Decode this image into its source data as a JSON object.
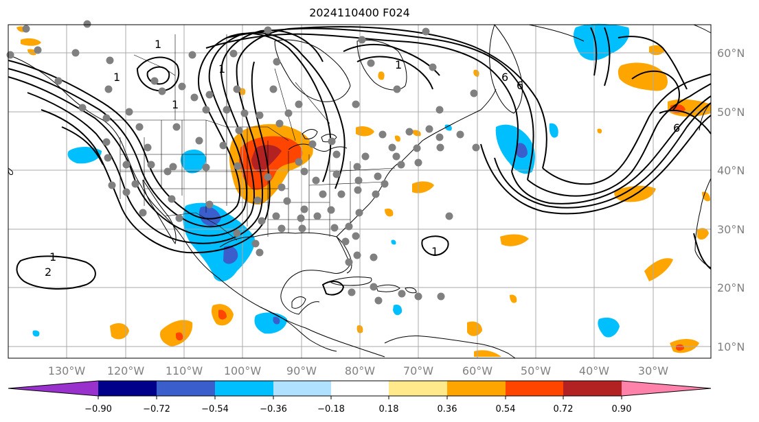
{
  "title": "2024110400 F024",
  "lon_labels": [
    "130°W",
    "120°W",
    "110°W",
    "100°W",
    "90°W",
    "80°W",
    "70°W",
    "60°W",
    "50°W",
    "40°W",
    "30°W"
  ],
  "lat_labels": [
    "60°N",
    "50°N",
    "40°N",
    "30°N",
    "20°N",
    "10°N"
  ],
  "colorbar": {
    "ticks": [
      "−0.90",
      "−0.72",
      "−0.54",
      "−0.36",
      "−0.18",
      "0.18",
      "0.36",
      "0.54",
      "0.72",
      "0.90"
    ],
    "colors": [
      "#9932cc",
      "#00008b",
      "#3a5fcd",
      "#00bfff",
      "#b0e2ff",
      "#ffffff",
      "#ffe98a",
      "#ffa500",
      "#ff4500",
      "#b22222",
      "#ff82ab"
    ]
  },
  "contour_labels": [
    "1",
    "1",
    "1",
    "1",
    "1",
    "1",
    "1",
    "6",
    "6",
    "6",
    "2"
  ],
  "colors": {
    "grid": "#aaaaaa",
    "contour": "#000000",
    "station": "#808080",
    "axis_text": "#808080"
  }
}
